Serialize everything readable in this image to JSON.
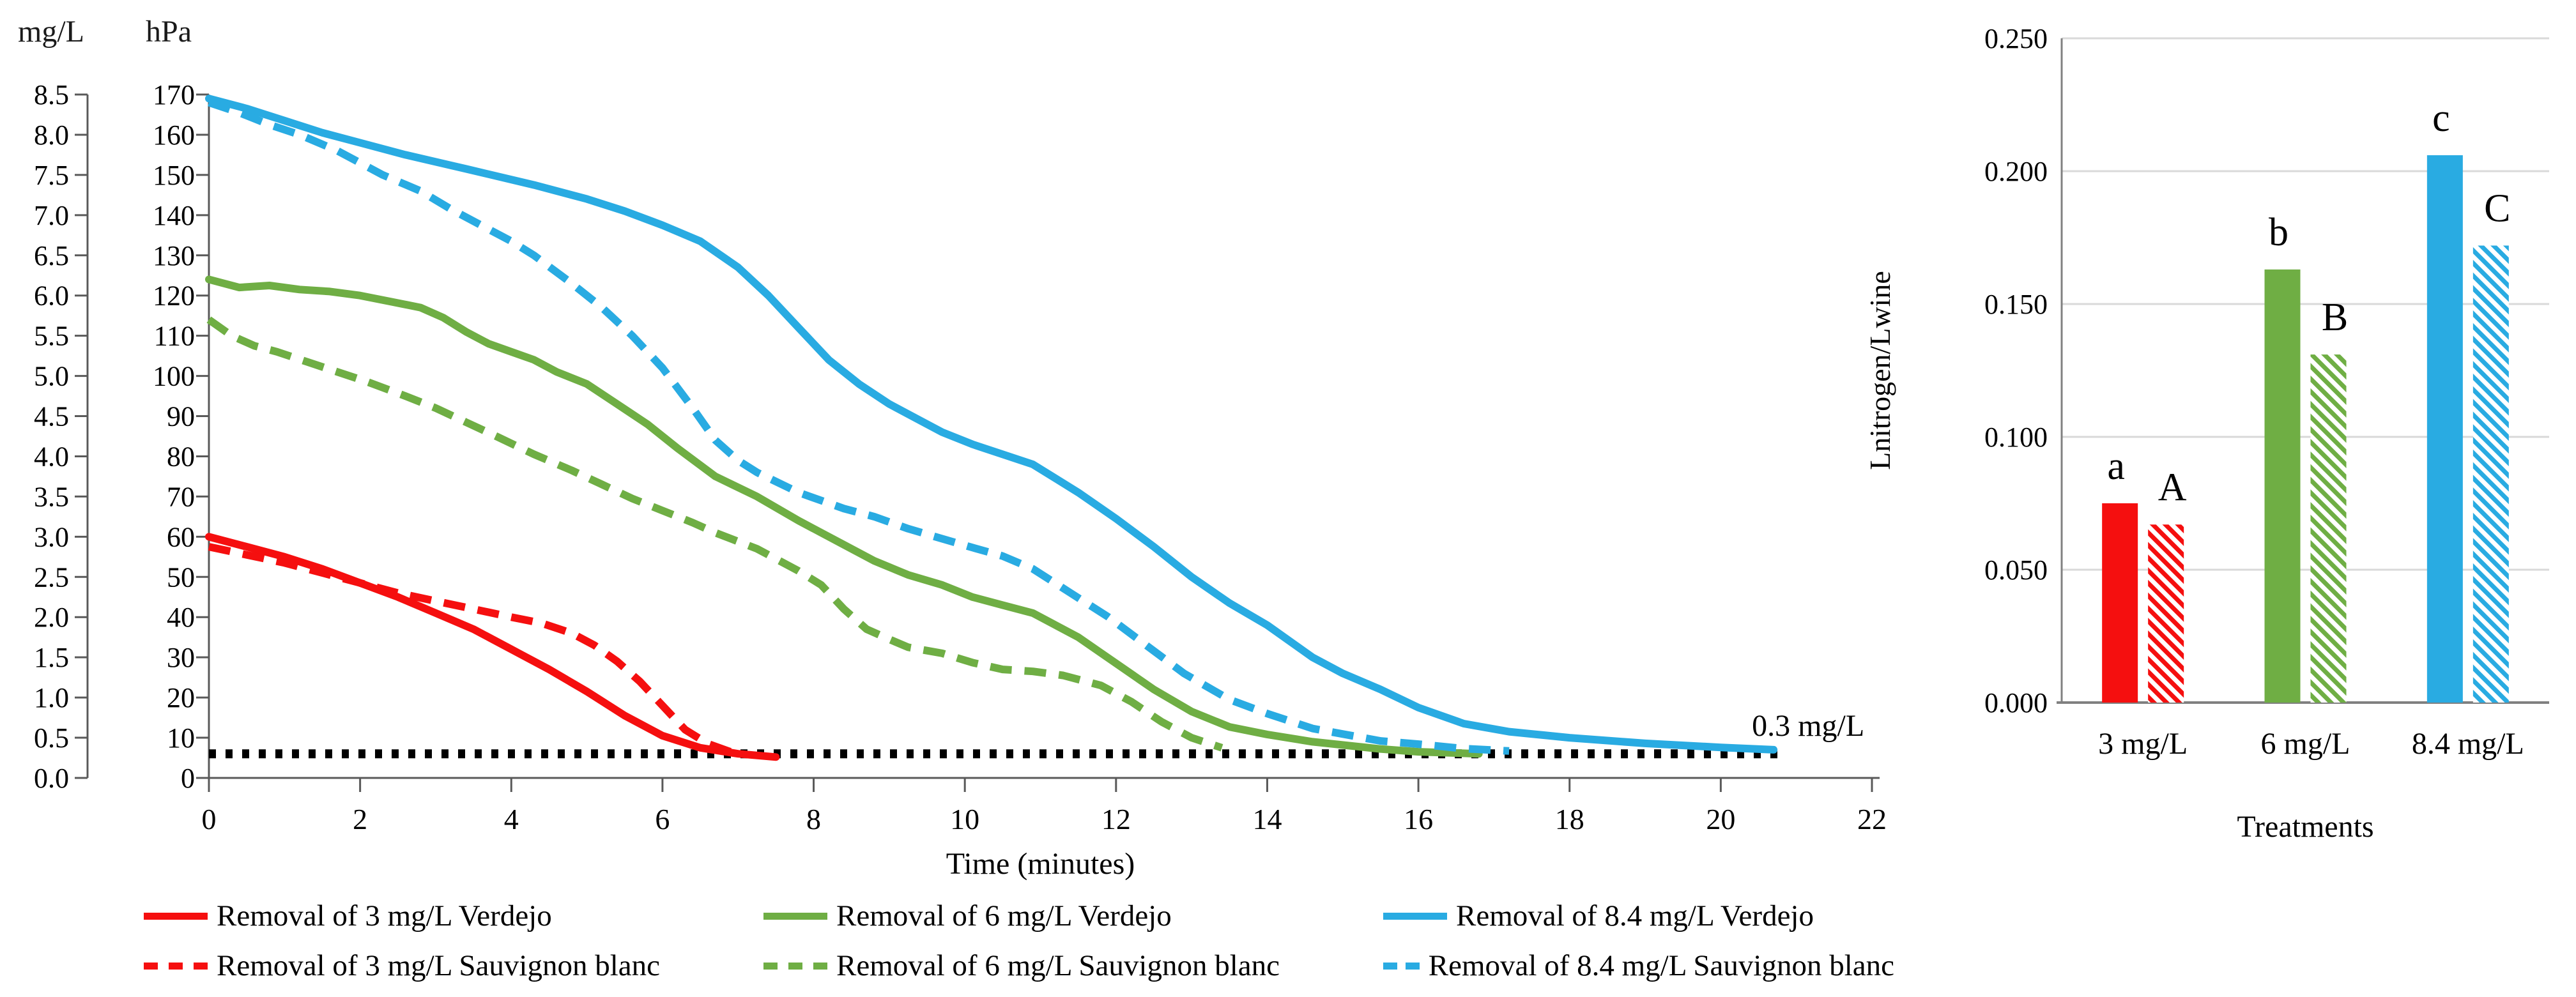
{
  "figure": {
    "colors": {
      "red": "#f50f0f",
      "green": "#6fae44",
      "blue": "#29abe2",
      "dotted_reference": "#000000",
      "axis": "#808080",
      "gridline": "#d9d9d9",
      "text": "#000000"
    }
  },
  "line_chart_labels": {
    "left_unit_header": "mg/L",
    "right_unit_header": "hPa",
    "xlabel": "Time (minutes)",
    "annotation": "0.3 mg/L"
  },
  "chart_data": [
    {
      "type": "line",
      "title": "",
      "xlabel": "Time (minutes)",
      "ylabel_primary": "mg/L",
      "ylabel_secondary": "hPa",
      "xlim": [
        0,
        22
      ],
      "ylim_hPa": [
        0,
        170
      ],
      "ylim_mgL": [
        0.0,
        8.5
      ],
      "x_ticks": [
        0,
        2,
        4,
        6,
        8,
        10,
        12,
        14,
        16,
        18,
        20,
        22
      ],
      "y_ticks_mgL": [
        "8.5",
        "8.0",
        "7.5",
        "7.0",
        "6.5",
        "6.0",
        "5.5",
        "5.0",
        "4.5",
        "4.0",
        "3.5",
        "3.0",
        "2.5",
        "2.0",
        "1.5",
        "1.0",
        "0.5",
        "0.0"
      ],
      "y_ticks_hPa": [
        "170",
        "160",
        "150",
        "140",
        "130",
        "120",
        "110",
        "100",
        "90",
        "80",
        "70",
        "60",
        "50",
        "40",
        "30",
        "20",
        "10",
        "0"
      ],
      "grid": false,
      "legend_position": "bottom",
      "reference_line": {
        "label": "0.3 mg/L",
        "value_hPa": 6,
        "x_start": 0,
        "x_end": 20.8,
        "style": "dotted",
        "color": "#000000"
      },
      "series": [
        {
          "name": "Removal of 3 mg/L Verdejo",
          "color": "#f50f0f",
          "dash": "solid",
          "points": [
            [
              0,
              60
            ],
            [
              0.5,
              57.5
            ],
            [
              1,
              55
            ],
            [
              1.5,
              52
            ],
            [
              2,
              48.5
            ],
            [
              2.5,
              45
            ],
            [
              3,
              41
            ],
            [
              3.5,
              37
            ],
            [
              4,
              32
            ],
            [
              4.5,
              27
            ],
            [
              5,
              21.5
            ],
            [
              5.5,
              15.5
            ],
            [
              6,
              10.5
            ],
            [
              6.5,
              7.5
            ],
            [
              7,
              6
            ],
            [
              7.5,
              5.2
            ]
          ]
        },
        {
          "name": "Removal of 3 mg/L Sauvignon blanc",
          "color": "#f50f0f",
          "dash": "dashed",
          "points": [
            [
              0,
              57.5
            ],
            [
              0.5,
              55.5
            ],
            [
              1,
              53.5
            ],
            [
              1.5,
              51
            ],
            [
              2,
              48.5
            ],
            [
              2.5,
              46
            ],
            [
              3,
              44
            ],
            [
              3.5,
              42
            ],
            [
              4,
              40
            ],
            [
              4.4,
              38.5
            ],
            [
              4.8,
              36
            ],
            [
              5.1,
              33
            ],
            [
              5.4,
              29
            ],
            [
              5.7,
              24
            ],
            [
              6,
              18
            ],
            [
              6.3,
              12
            ],
            [
              6.6,
              8.5
            ],
            [
              6.9,
              6.5
            ]
          ]
        },
        {
          "name": "Removal of 6 mg/L Verdejo",
          "color": "#6fae44",
          "dash": "solid",
          "points": [
            [
              0,
              124
            ],
            [
              0.4,
              122
            ],
            [
              0.8,
              122.5
            ],
            [
              1.2,
              121.5
            ],
            [
              1.6,
              121
            ],
            [
              2,
              120
            ],
            [
              2.4,
              118.5
            ],
            [
              2.8,
              117
            ],
            [
              3.1,
              114.5
            ],
            [
              3.4,
              111
            ],
            [
              3.7,
              108
            ],
            [
              4,
              106
            ],
            [
              4.3,
              104
            ],
            [
              4.6,
              101
            ],
            [
              5,
              98
            ],
            [
              5.4,
              93
            ],
            [
              5.8,
              88
            ],
            [
              6.2,
              82
            ],
            [
              6.7,
              75
            ],
            [
              7.25,
              70
            ],
            [
              7.8,
              64
            ],
            [
              8.4,
              58
            ],
            [
              8.8,
              54
            ],
            [
              9.25,
              50.5
            ],
            [
              9.7,
              48
            ],
            [
              10.1,
              45
            ],
            [
              10.5,
              43
            ],
            [
              10.9,
              41
            ],
            [
              11.5,
              35
            ],
            [
              12,
              28.5
            ],
            [
              12.5,
              22
            ],
            [
              13,
              16.5
            ],
            [
              13.5,
              12.7
            ],
            [
              14,
              10.8
            ],
            [
              14.6,
              9
            ],
            [
              15.5,
              7.2
            ],
            [
              16,
              6.5
            ],
            [
              16.8,
              6
            ]
          ]
        },
        {
          "name": "Removal of 6 mg/L Sauvignon blanc",
          "color": "#6fae44",
          "dash": "dashed",
          "points": [
            [
              0,
              114
            ],
            [
              0.3,
              110
            ],
            [
              0.6,
              107.5
            ],
            [
              0.9,
              106
            ],
            [
              1.3,
              103.5
            ],
            [
              1.7,
              101
            ],
            [
              2.1,
              98.5
            ],
            [
              2.6,
              95
            ],
            [
              3,
              92
            ],
            [
              3.4,
              88.5
            ],
            [
              3.8,
              85
            ],
            [
              4.3,
              80.5
            ],
            [
              4.8,
              76.5
            ],
            [
              5.2,
              73
            ],
            [
              5.6,
              69.5
            ],
            [
              6,
              66.5
            ],
            [
              6.4,
              63.5
            ],
            [
              6.7,
              61
            ],
            [
              7.25,
              57
            ],
            [
              7.8,
              51.5
            ],
            [
              8.1,
              48
            ],
            [
              8.4,
              42
            ],
            [
              8.7,
              37
            ],
            [
              9,
              34.5
            ],
            [
              9.25,
              32.5
            ],
            [
              9.7,
              31
            ],
            [
              10.1,
              28.7
            ],
            [
              10.5,
              27
            ],
            [
              10.9,
              26.5
            ],
            [
              11.3,
              25.5
            ],
            [
              11.8,
              23
            ],
            [
              12.2,
              19
            ],
            [
              12.6,
              14
            ],
            [
              13,
              10
            ],
            [
              13.4,
              7.5
            ]
          ]
        },
        {
          "name": "Removal of 8.4 mg/L Verdejo",
          "color": "#29abe2",
          "dash": "solid",
          "points": [
            [
              0,
              169
            ],
            [
              0.5,
              166.5
            ],
            [
              1,
              163.5
            ],
            [
              1.5,
              160.5
            ],
            [
              2,
              158
            ],
            [
              2.6,
              155
            ],
            [
              3.4,
              151.5
            ],
            [
              4.3,
              147.5
            ],
            [
              5,
              144
            ],
            [
              5.5,
              141
            ],
            [
              6,
              137.5
            ],
            [
              6.5,
              133.5
            ],
            [
              7,
              127
            ],
            [
              7.4,
              120
            ],
            [
              7.8,
              112
            ],
            [
              8.2,
              104
            ],
            [
              8.6,
              98
            ],
            [
              9,
              93
            ],
            [
              9.4,
              89
            ],
            [
              9.7,
              86
            ],
            [
              10.1,
              83
            ],
            [
              10.5,
              80.5
            ],
            [
              10.9,
              78
            ],
            [
              11.5,
              71
            ],
            [
              12,
              64.5
            ],
            [
              12.5,
              57.5
            ],
            [
              13,
              50
            ],
            [
              13.5,
              43.5
            ],
            [
              14,
              38
            ],
            [
              14.6,
              30
            ],
            [
              15,
              26
            ],
            [
              15.5,
              22
            ],
            [
              16,
              17.5
            ],
            [
              16.6,
              13.5
            ],
            [
              17.2,
              11.5
            ],
            [
              18,
              10
            ],
            [
              19,
              8.6
            ],
            [
              20,
              7.6
            ],
            [
              20.7,
              7
            ]
          ]
        },
        {
          "name": "Removal of 8.4 mg/L Sauvignon blanc",
          "color": "#29abe2",
          "dash": "dashed",
          "points": [
            [
              0,
              168
            ],
            [
              0.4,
              165.5
            ],
            [
              0.8,
              162.5
            ],
            [
              1.2,
              160
            ],
            [
              1.7,
              156
            ],
            [
              2.3,
              150
            ],
            [
              2.8,
              146
            ],
            [
              3.2,
              141.5
            ],
            [
              3.6,
              137.5
            ],
            [
              4,
              133.5
            ],
            [
              4.3,
              130
            ],
            [
              4.8,
              123
            ],
            [
              5.2,
              117
            ],
            [
              5.6,
              110
            ],
            [
              6,
              102
            ],
            [
              6.4,
              92
            ],
            [
              6.7,
              84
            ],
            [
              7,
              79
            ],
            [
              7.25,
              76
            ],
            [
              7.8,
              71
            ],
            [
              8.4,
              67
            ],
            [
              8.8,
              65
            ],
            [
              9.25,
              62
            ],
            [
              9.7,
              59.5
            ],
            [
              10.1,
              57.3
            ],
            [
              10.5,
              55.2
            ],
            [
              10.9,
              52
            ],
            [
              11.4,
              46
            ],
            [
              11.9,
              40
            ],
            [
              12.4,
              33
            ],
            [
              12.9,
              26
            ],
            [
              13.5,
              19.5
            ],
            [
              14,
              16
            ],
            [
              14.6,
              12.3
            ],
            [
              15.5,
              9.2
            ],
            [
              16,
              8.4
            ],
            [
              16.6,
              7.3
            ],
            [
              17.2,
              6.7
            ]
          ]
        }
      ]
    },
    {
      "type": "bar",
      "title": "",
      "xlabel": "Treatments",
      "ylabel": "Lnitrogen/Lwine",
      "categories": [
        "3 mg/L",
        "6 mg/L",
        "8.4 mg/L"
      ],
      "category_colors": [
        "#f50f0f",
        "#6fae44",
        "#29abe2"
      ],
      "ylim": [
        0.0,
        0.25
      ],
      "y_ticks": [
        "0.250",
        "0.200",
        "0.150",
        "0.100",
        "0.050",
        "0.000"
      ],
      "grid": true,
      "series": [
        {
          "name": "Verdejo",
          "style": "solid",
          "values": [
            0.075,
            0.163,
            0.206
          ],
          "letters": [
            "a",
            "b",
            "c"
          ]
        },
        {
          "name": "Sauvignon blanc",
          "style": "hatched",
          "values": [
            0.067,
            0.131,
            0.172
          ],
          "letters": [
            "A",
            "B",
            "C"
          ]
        }
      ]
    }
  ]
}
